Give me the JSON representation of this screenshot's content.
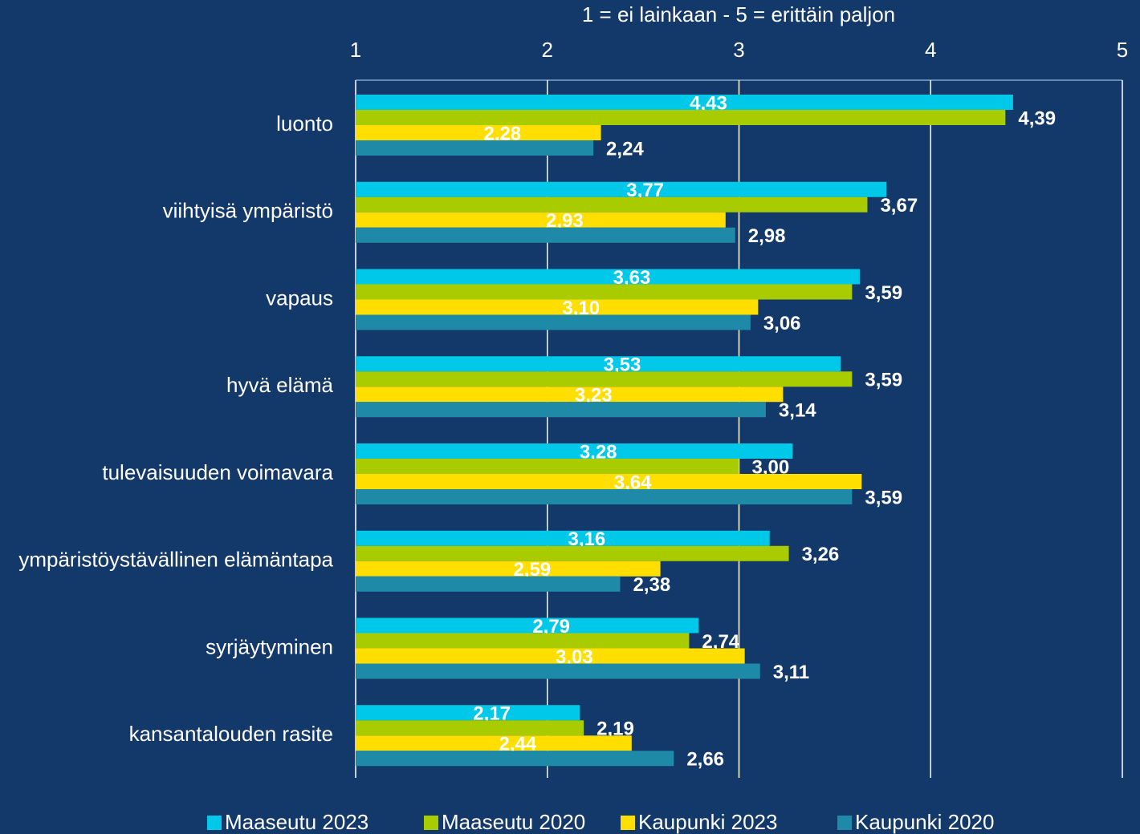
{
  "chart_data": {
    "type": "barh",
    "x_label": "1 = ei lainkaan - 5 = erittäin paljon",
    "categories": [
      "luonto",
      "viihtyisä ympäristö",
      "vapaus",
      "hyvä elämä",
      "tulevaisuuden voimavara",
      "ympäristöystävällinen elämäntapa",
      "syrjäytyminen",
      "kansantalouden rasite"
    ],
    "series": [
      {
        "name": "Maaseutu 2023",
        "color": "#00c8e8",
        "values": [
          4.43,
          3.77,
          3.63,
          3.53,
          3.28,
          3.16,
          2.79,
          2.17
        ],
        "value_labels": [
          "4,43",
          "3,77",
          "3,63",
          "3,53",
          "3,28",
          "3,16",
          "2,79",
          "2,17"
        ]
      },
      {
        "name": "Maaseutu 2020",
        "color": "#a8cc00",
        "values": [
          4.39,
          3.67,
          3.59,
          3.59,
          3.0,
          3.26,
          2.74,
          2.19
        ],
        "value_labels": [
          "4,39",
          "3,67",
          "3,59",
          "3,59",
          "3,00",
          "3,26",
          "2,74",
          "2,19"
        ]
      },
      {
        "name": "Kaupunki 2023",
        "color": "#ffde00",
        "values": [
          2.28,
          2.93,
          3.1,
          3.23,
          3.64,
          2.59,
          3.03,
          2.44
        ],
        "value_labels": [
          "2,28",
          "2,93",
          "3,10",
          "3,23",
          "3,64",
          "2,59",
          "3,03",
          "2,44"
        ]
      },
      {
        "name": "Kaupunki 2020",
        "color": "#1e8aa8",
        "values": [
          2.24,
          2.98,
          3.06,
          3.14,
          3.59,
          2.38,
          3.11,
          2.66
        ],
        "value_labels": [
          "2,24",
          "2,98",
          "3,06",
          "3,14",
          "3,59",
          "2,38",
          "3,11",
          "2,66"
        ]
      }
    ],
    "xlim": [
      1,
      5
    ],
    "xticks": [
      1,
      2,
      3,
      4,
      5
    ],
    "grid": true,
    "legend": "bottom"
  }
}
